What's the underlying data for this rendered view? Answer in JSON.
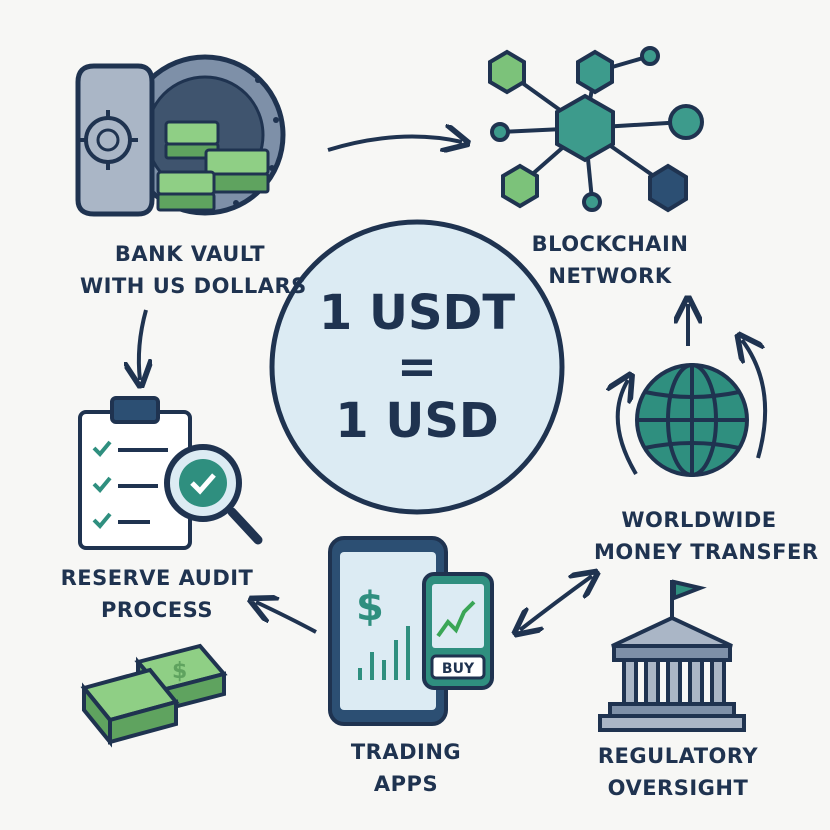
{
  "center": {
    "line1": "1 USDT",
    "line2": "=",
    "line3": "1 USD"
  },
  "nodes": {
    "vault": {
      "line1": "BANK VAULT",
      "line2": "WITH US DOLLARS",
      "icon": "bank-vault-icon"
    },
    "blockchain": {
      "line1": "BLOCKCHAIN",
      "line2": "NETWORK",
      "icon": "blockchain-network-icon"
    },
    "transfer": {
      "line1": "WORLDWIDE",
      "line2": "MONEY TRANSFER",
      "icon": "globe-icon"
    },
    "audit": {
      "line1": "RESERVE AUDIT",
      "line2": "PROCESS",
      "icon": "clipboard-audit-icon"
    },
    "trading": {
      "line1": "TRADING",
      "line2": "APPS",
      "icon": "smartphone-trading-icon",
      "phone_symbol": "$",
      "buy_label": "BUY"
    },
    "regulatory": {
      "line1": "REGULATORY",
      "line2": "OVERSIGHT",
      "icon": "government-building-icon"
    },
    "gold": {
      "icon": "gold-bars-icon"
    }
  },
  "colors": {
    "navy": "#1f3350",
    "teal": "#2f8f7f",
    "green": "#7cc27a",
    "light_blue": "#dcebf3",
    "blue_gray": "#7e90a8",
    "dark_blue": "#2c4f73"
  }
}
